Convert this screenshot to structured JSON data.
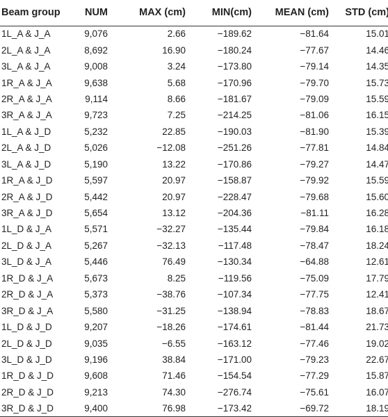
{
  "table": {
    "headers": [
      "Beam group",
      "NUM",
      "MAX (cm)",
      "MIN(cm)",
      "MEAN (cm)",
      "STD (cm)"
    ],
    "rows": [
      [
        "1L_A & J_A",
        "9,076",
        "2.66",
        "−189.62",
        "−81.64",
        "15.01"
      ],
      [
        "2L_A & J_A",
        "8,692",
        "16.90",
        "−180.24",
        "−77.67",
        "14.46"
      ],
      [
        "3L_A & J_A",
        "9,008",
        "3.24",
        "−173.80",
        "−79.14",
        "14.35"
      ],
      [
        "1R_A & J_A",
        "9,638",
        "5.68",
        "−170.96",
        "−79.70",
        "15.73"
      ],
      [
        "2R_A & J_A",
        "9,114",
        "8.66",
        "−181.67",
        "−79.09",
        "15.59"
      ],
      [
        "3R_A & J_A",
        "9,723",
        "7.25",
        "−214.25",
        "−81.06",
        "16.15"
      ],
      [
        "1L_A & J_D",
        "5,232",
        "22.85",
        "−190.03",
        "−81.90",
        "15.39"
      ],
      [
        "2L_A & J_D",
        "5,026",
        "−12.08",
        "−251.26",
        "−77.81",
        "14.84"
      ],
      [
        "3L_A & J_D",
        "5,190",
        "13.22",
        "−170.86",
        "−79.27",
        "14.47"
      ],
      [
        "1R_A & J_D",
        "5,597",
        "20.97",
        "−158.87",
        "−79.92",
        "15.59"
      ],
      [
        "2R_A & J_D",
        "5,442",
        "20.97",
        "−228.47",
        "−79.68",
        "15.60"
      ],
      [
        "3R_A & J_D",
        "5,654",
        "13.12",
        "−204.36",
        "−81.11",
        "16.28"
      ],
      [
        "1L_D & J_A",
        "5,571",
        "−32.27",
        "−135.44",
        "−79.84",
        "16.18"
      ],
      [
        "2L_D & J_A",
        "5,267",
        "−32.13",
        "−117.48",
        "−78.47",
        "18.24"
      ],
      [
        "3L_D & J_A",
        "5,446",
        "76.49",
        "−130.34",
        "−64.88",
        "12.61"
      ],
      [
        "1R_D & J_A",
        "5,673",
        "8.25",
        "−119.56",
        "−75.09",
        "17.79"
      ],
      [
        "2R_D & J_A",
        "5,373",
        "−38.76",
        "−107.34",
        "−77.75",
        "12.41"
      ],
      [
        "3R_D & J_A",
        "5,580",
        "−31.25",
        "−138.94",
        "−78.83",
        "18.67"
      ],
      [
        "1L_D & J_D",
        "9,207",
        "−18.26",
        "−174.61",
        "−81.44",
        "21.73"
      ],
      [
        "2L_D & J_D",
        "9,035",
        "−6.55",
        "−163.12",
        "−77.46",
        "19.02"
      ],
      [
        "3L_D & J_D",
        "9,196",
        "38.84",
        "−171.00",
        "−79.23",
        "22.67"
      ],
      [
        "1R_D & J_D",
        "9,608",
        "71.46",
        "−154.54",
        "−77.29",
        "15.87"
      ],
      [
        "2R_D & J_D",
        "9,213",
        "74.30",
        "−276.74",
        "−75.61",
        "16.07"
      ],
      [
        "3R_D & J_D",
        "9,400",
        "76.98",
        "−173.42",
        "−69.72",
        "18.19"
      ]
    ]
  }
}
